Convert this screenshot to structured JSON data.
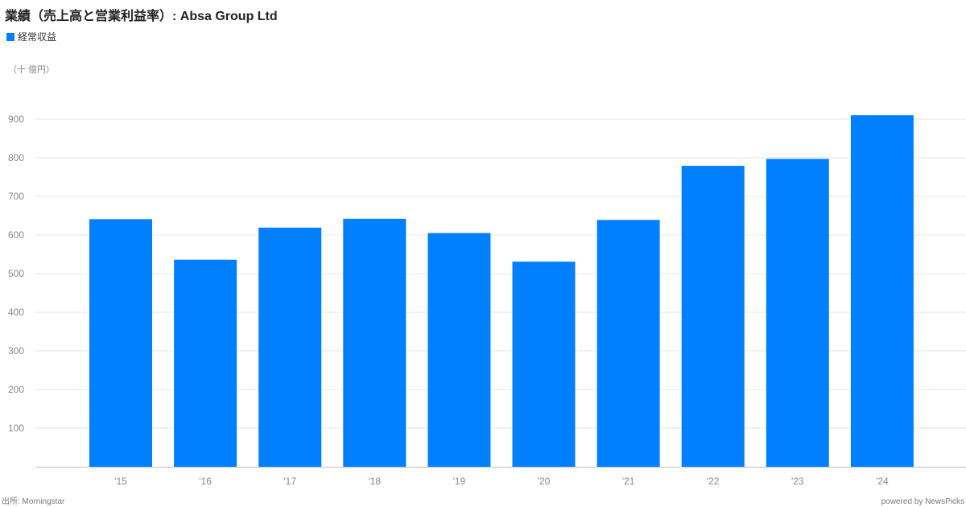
{
  "title": "業績（売上高と営業利益率）: Absa Group Ltd",
  "unit_label": "（十 億円）",
  "source": "出所: Morningstar",
  "credit": "powered by NewsPicks",
  "colors": {
    "bar": "#0080ff",
    "grid": "#e6e6e6",
    "axis": "#c0c0c0",
    "tick_text": "#888888"
  },
  "chart_data": {
    "type": "bar",
    "categories": [
      "'15",
      "'16",
      "'17",
      "'18",
      "'19",
      "'20",
      "'21",
      "'22",
      "'23",
      "'24"
    ],
    "series": [
      {
        "name": "経常収益",
        "values": [
          641,
          536,
          619,
          642,
          605,
          531,
          639,
          779,
          797,
          910
        ]
      }
    ],
    "ylim": [
      0,
      900
    ],
    "yticks": [
      100,
      200,
      300,
      400,
      500,
      600,
      700,
      800,
      900
    ],
    "grid": true,
    "legend": "top-left"
  }
}
